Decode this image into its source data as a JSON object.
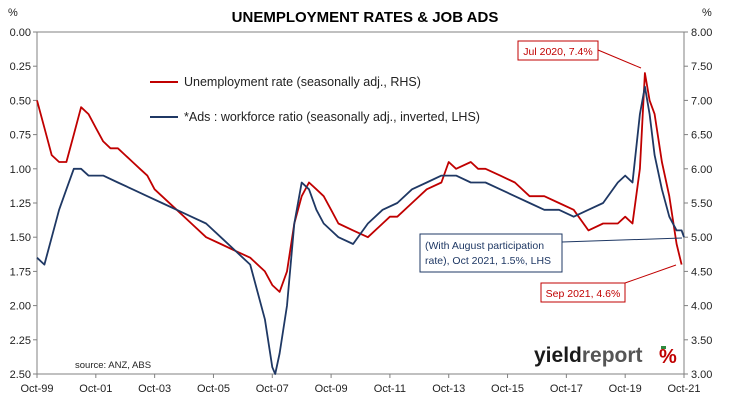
{
  "chart_data": {
    "type": "line",
    "title": "UNEMPLOYMENT RATES & JOB ADS",
    "y_left_unit": "%",
    "y_right_unit": "%",
    "y_left_ticks": [
      "0.00",
      "0.25",
      "0.50",
      "0.75",
      "1.00",
      "1.25",
      "1.50",
      "1.75",
      "2.00",
      "2.25",
      "2.50"
    ],
    "y_left_range": [
      0,
      2.5
    ],
    "y_left_inverted": true,
    "y_right_ticks": [
      "8.00",
      "7.50",
      "7.00",
      "6.50",
      "6.00",
      "5.50",
      "5.00",
      "4.50",
      "4.00",
      "3.50",
      "3.00"
    ],
    "y_right_range": [
      3.0,
      8.0
    ],
    "x_ticks": [
      "Oct-99",
      "Oct-01",
      "Oct-03",
      "Oct-05",
      "Oct-07",
      "Oct-09",
      "Oct-11",
      "Oct-13",
      "Oct-15",
      "Oct-17",
      "Oct-19",
      "Oct-21"
    ],
    "x_range": [
      1999.75,
      2021.75
    ],
    "grid": false,
    "legend_position": "top-left",
    "series": [
      {
        "name": "Unemployment rate (seasonally adj., RHS)",
        "axis": "right",
        "color": "#c00000",
        "x": [
          1999.75,
          2000.0,
          2000.25,
          2000.5,
          2000.75,
          2001.0,
          2001.25,
          2001.5,
          2001.75,
          2002.0,
          2002.25,
          2002.5,
          2002.75,
          2003.0,
          2003.25,
          2003.5,
          2003.75,
          2004.0,
          2004.5,
          2005.0,
          2005.5,
          2006.0,
          2006.5,
          2007.0,
          2007.5,
          2007.75,
          2008.0,
          2008.25,
          2008.5,
          2008.75,
          2009.0,
          2009.25,
          2009.5,
          2009.75,
          2010.0,
          2010.5,
          2011.0,
          2011.5,
          2011.75,
          2012.0,
          2012.5,
          2013.0,
          2013.5,
          2013.75,
          2014.0,
          2014.5,
          2014.75,
          2015.0,
          2015.5,
          2016.0,
          2016.5,
          2017.0,
          2017.5,
          2018.0,
          2018.5,
          2019.0,
          2019.5,
          2019.75,
          2020.0,
          2020.25,
          2020.42,
          2020.58,
          2020.75,
          2021.0,
          2021.25,
          2021.5,
          2021.67
        ],
        "values": [
          7.0,
          6.6,
          6.2,
          6.1,
          6.1,
          6.5,
          6.9,
          6.8,
          6.6,
          6.4,
          6.3,
          6.3,
          6.2,
          6.1,
          6.0,
          5.9,
          5.7,
          5.6,
          5.4,
          5.2,
          5.0,
          4.9,
          4.8,
          4.7,
          4.5,
          4.3,
          4.2,
          4.5,
          5.2,
          5.6,
          5.8,
          5.7,
          5.6,
          5.4,
          5.2,
          5.1,
          5.0,
          5.2,
          5.3,
          5.3,
          5.5,
          5.7,
          5.8,
          6.1,
          6.0,
          6.1,
          6.0,
          6.0,
          5.9,
          5.8,
          5.6,
          5.6,
          5.5,
          5.4,
          5.1,
          5.2,
          5.2,
          5.3,
          5.2,
          6.0,
          7.4,
          7.0,
          6.8,
          6.1,
          5.6,
          4.9,
          4.6
        ]
      },
      {
        "name": "*Ads : workforce ratio (seasonally adj., inverted, LHS)",
        "axis": "left",
        "color": "#1f3864",
        "x": [
          1999.75,
          2000.0,
          2000.5,
          2000.75,
          2001.0,
          2001.25,
          2001.5,
          2002.0,
          2002.5,
          2003.0,
          2003.5,
          2004.0,
          2004.5,
          2005.0,
          2005.5,
          2006.0,
          2006.5,
          2007.0,
          2007.5,
          2007.75,
          2007.85,
          2008.0,
          2008.25,
          2008.5,
          2008.75,
          2009.0,
          2009.25,
          2009.5,
          2009.75,
          2010.0,
          2010.5,
          2011.0,
          2011.5,
          2012.0,
          2012.5,
          2013.0,
          2013.5,
          2014.0,
          2014.5,
          2015.0,
          2015.5,
          2016.0,
          2016.5,
          2017.0,
          2017.5,
          2018.0,
          2018.5,
          2019.0,
          2019.5,
          2019.75,
          2020.0,
          2020.25,
          2020.42,
          2020.58,
          2020.75,
          2021.0,
          2021.25,
          2021.5,
          2021.67,
          2021.75
        ],
        "values": [
          1.65,
          1.7,
          1.3,
          1.15,
          1.0,
          1.0,
          1.05,
          1.05,
          1.1,
          1.15,
          1.2,
          1.25,
          1.3,
          1.35,
          1.4,
          1.5,
          1.6,
          1.7,
          2.1,
          2.45,
          2.5,
          2.35,
          2.0,
          1.4,
          1.1,
          1.15,
          1.3,
          1.4,
          1.45,
          1.5,
          1.55,
          1.4,
          1.3,
          1.25,
          1.15,
          1.1,
          1.05,
          1.05,
          1.1,
          1.1,
          1.15,
          1.2,
          1.25,
          1.3,
          1.3,
          1.35,
          1.3,
          1.25,
          1.1,
          1.05,
          1.1,
          0.6,
          0.4,
          0.6,
          0.9,
          1.15,
          1.35,
          1.45,
          1.45,
          1.5
        ]
      }
    ],
    "annotations": [
      {
        "label": "Jul 2020, 7.4%",
        "color": "#c00000"
      },
      {
        "label": "Sep 2021, 4.6%",
        "color": "#c00000"
      },
      {
        "label": "(With August participation rate), Oct 2021, 1.5%, LHS",
        "color": "#1f3864"
      }
    ],
    "source": "source: ANZ, ABS",
    "brand": {
      "word1": "yield",
      "word2": "report",
      "symbol": "%"
    }
  }
}
